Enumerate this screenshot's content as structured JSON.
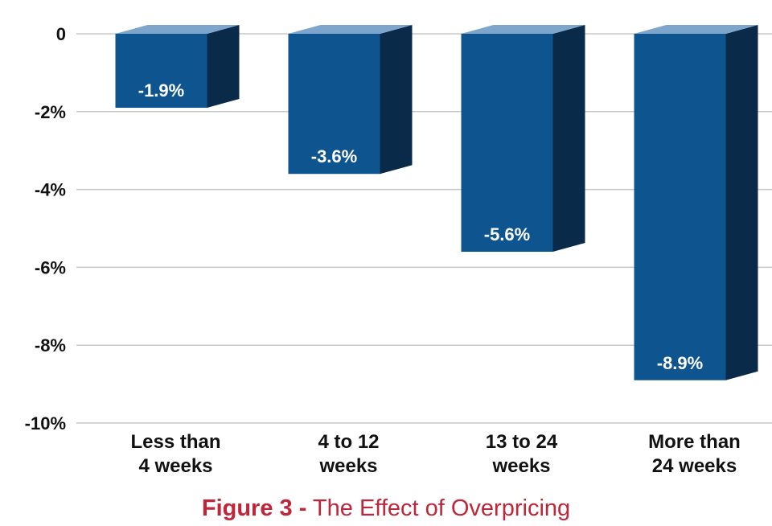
{
  "chart_data": {
    "type": "bar",
    "title": "",
    "xlabel": "",
    "ylabel": "",
    "categories": [
      [
        "Less than",
        "4 weeks"
      ],
      [
        "4 to 12",
        "weeks"
      ],
      [
        "13 to 24",
        "weeks"
      ],
      [
        "More than",
        "24 weeks"
      ]
    ],
    "values": [
      -1.9,
      -3.6,
      -5.6,
      -8.9
    ],
    "data_labels": [
      "-1.9%",
      "-3.6%",
      "-5.6%",
      "-8.9%"
    ],
    "ylim": [
      -10,
      0
    ],
    "yticks": [
      0,
      -2,
      -4,
      -6,
      -8,
      -10
    ],
    "ytick_labels": [
      "0",
      "-2%",
      "-4%",
      "-6%",
      "-8%",
      "-10%"
    ],
    "grid": true,
    "style": "3d-bar"
  },
  "colors": {
    "bar_front": "#0e5590",
    "bar_side": "#0a2a4a",
    "bar_top": "#7ea6cd",
    "grid": "#c8c8c8",
    "caption": "#c0263a"
  },
  "caption": {
    "label": "Figure 3 -",
    "text": "The Effect of Overpricing"
  }
}
